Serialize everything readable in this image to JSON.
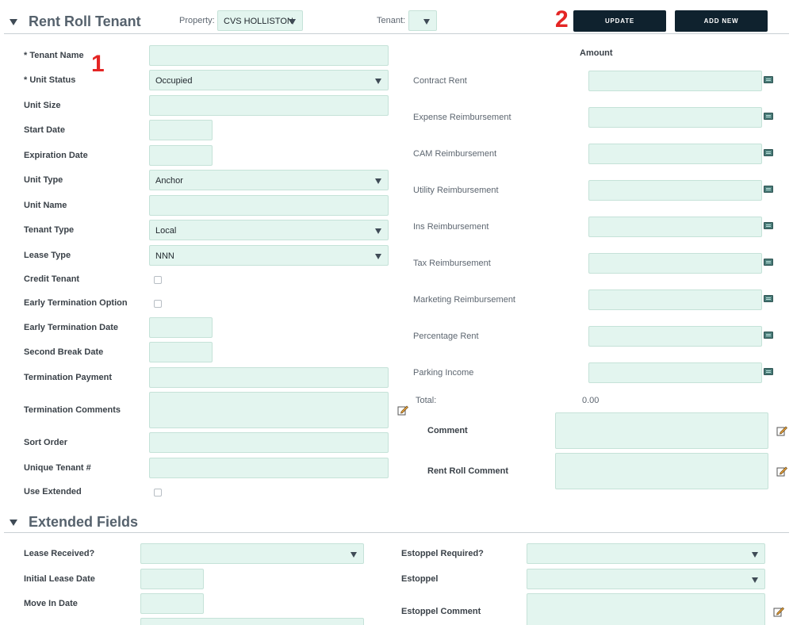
{
  "header": {
    "section_title": "Rent Roll Tenant",
    "property_label": "Property:",
    "property_value": "CVS HOLLISTON",
    "tenant_label": "Tenant:",
    "tenant_value": "",
    "update_label": "UPDATE",
    "add_new_label": "ADD NEW"
  },
  "annotations": {
    "marker_1": "1",
    "marker_2": "2"
  },
  "left_form": {
    "tenant_name": {
      "label": "* Tenant Name",
      "value": ""
    },
    "unit_status": {
      "label": "* Unit Status",
      "value": "Occupied"
    },
    "unit_size": {
      "label": "Unit Size",
      "value": ""
    },
    "start_date": {
      "label": "Start Date",
      "value": ""
    },
    "expiration_date": {
      "label": "Expiration Date",
      "value": ""
    },
    "unit_type": {
      "label": "Unit Type",
      "value": "Anchor"
    },
    "unit_name": {
      "label": "Unit Name",
      "value": ""
    },
    "tenant_type": {
      "label": "Tenant Type",
      "value": "Local"
    },
    "lease_type": {
      "label": "Lease Type",
      "value": "NNN"
    },
    "credit_tenant": {
      "label": "Credit Tenant",
      "checked": false
    },
    "early_termination_option": {
      "label": "Early Termination Option",
      "checked": false
    },
    "early_termination_date": {
      "label": "Early Termination Date",
      "value": ""
    },
    "second_break_date": {
      "label": "Second Break Date",
      "value": ""
    },
    "termination_payment": {
      "label": "Termination Payment",
      "value": ""
    },
    "termination_comments": {
      "label": "Termination Comments",
      "value": ""
    },
    "sort_order": {
      "label": "Sort Order",
      "value": ""
    },
    "unique_tenant": {
      "label": "Unique Tenant #",
      "value": ""
    },
    "use_extended": {
      "label": "Use Extended",
      "checked": false
    }
  },
  "amounts": {
    "header": "Amount",
    "rows": [
      {
        "label": "Contract Rent",
        "value": ""
      },
      {
        "label": "Expense Reimbursement",
        "value": ""
      },
      {
        "label": "CAM Reimbursement",
        "value": ""
      },
      {
        "label": "Utility Reimbursement",
        "value": ""
      },
      {
        "label": "Ins Reimbursement",
        "value": ""
      },
      {
        "label": "Tax Reimbursement",
        "value": ""
      },
      {
        "label": "Marketing Reimbursement",
        "value": ""
      },
      {
        "label": "Percentage Rent",
        "value": ""
      },
      {
        "label": "Parking Income",
        "value": ""
      }
    ],
    "total_label": "Total:",
    "total_value": "0.00",
    "comment_label": "Comment",
    "rent_roll_comment_label": "Rent Roll Comment"
  },
  "extended": {
    "section_title": "Extended Fields",
    "lease_received": {
      "label": "Lease Received?",
      "value": ""
    },
    "initial_lease_date": {
      "label": "Initial Lease Date",
      "value": ""
    },
    "move_in_date": {
      "label": "Move In Date",
      "value": ""
    },
    "estoppel_required": {
      "label": "Estoppel Required?",
      "value": ""
    },
    "estoppel": {
      "label": "Estoppel",
      "value": ""
    },
    "estoppel_comment": {
      "label": "Estoppel Comment",
      "value": ""
    }
  },
  "colors": {
    "field_bg": "#e3f5ef",
    "button_bg": "#0f222e",
    "annotation_red": "#e42524",
    "calc_icon": "#4a7b78"
  },
  "icons": {
    "collapse": "caret-down-icon",
    "calculator": "calculator-icon",
    "edit": "edit-note-icon"
  }
}
